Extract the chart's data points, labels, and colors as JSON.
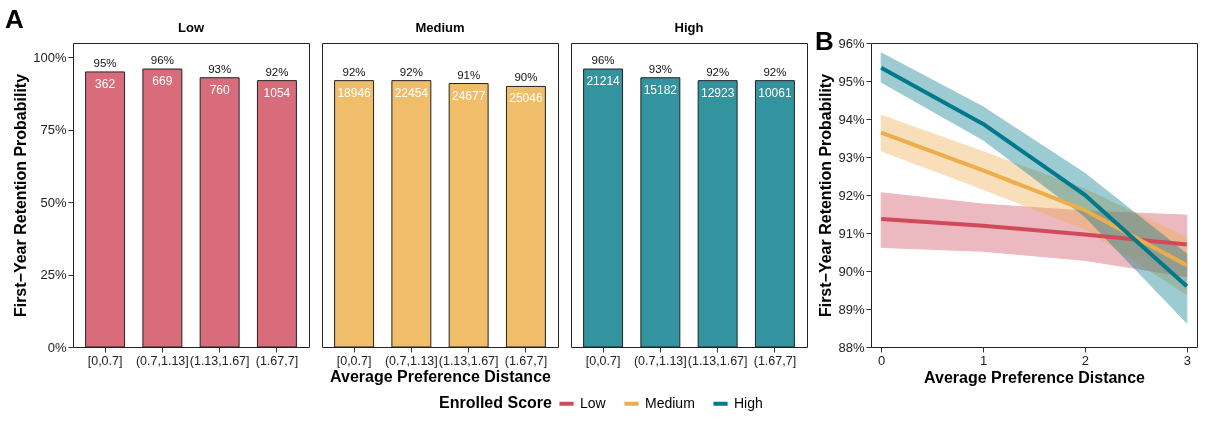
{
  "chart_data": [
    {
      "type": "bar",
      "title": "Low",
      "ylabel": "First−Year Retention Probability",
      "categories": [
        "[0,0.7]",
        "(0.7,1.13]",
        "(1.13,1.67]",
        "(1.67,7]"
      ],
      "values": [
        95,
        96,
        93,
        92
      ],
      "color": "#d96c7b",
      "value_labels": [
        "95%",
        "96%",
        "93%",
        "92%"
      ],
      "ylim": [
        0,
        105
      ],
      "yticks": [
        {
          "value": 0,
          "label": "0%"
        },
        {
          "value": 25,
          "label": "25%"
        },
        {
          "value": 50,
          "label": "50%"
        },
        {
          "value": 75,
          "label": "75%"
        },
        {
          "value": 100,
          "label": "100%"
        }
      ],
      "grid": false,
      "annotations": [
        "A",
        {
          "text": "362",
          "x": "[0,0.7]",
          "y": 95
        },
        {
          "text": "669",
          "x": "(0.7,1.13]",
          "y": 96
        },
        {
          "text": "760",
          "x": "(1.13,1.67]",
          "y": 93
        },
        {
          "text": "1054",
          "x": "(1.67,7]",
          "y": 92
        }
      ]
    },
    {
      "type": "bar",
      "title": "Medium",
      "xlabel": "Average Preference Distance",
      "categories": [
        "[0,0.7]",
        "(0.7,1.13]",
        "(1.13,1.67]",
        "(1.67,7]"
      ],
      "values": [
        92,
        92,
        91,
        90
      ],
      "color": "#f0bd6a",
      "value_labels": [
        "92%",
        "92%",
        "91%",
        "90%"
      ],
      "ylim": [
        0,
        105
      ],
      "tick_labels": "x",
      "grid": false,
      "annotations": [
        {
          "text": "18946",
          "x": "[0,0.7]",
          "y": 92
        },
        {
          "text": "22454",
          "x": "(0.7,1.13]",
          "y": 92
        },
        {
          "text": "24677",
          "x": "(1.13,1.67]",
          "y": 91
        },
        {
          "text": "25046",
          "x": "(1.67,7]",
          "y": 90
        }
      ]
    },
    {
      "type": "bar",
      "title": "High",
      "categories": [
        "[0,0.7]",
        "(0.7,1.13]",
        "(1.13,1.67]",
        "(1.67,7]"
      ],
      "values": [
        96,
        93,
        92,
        92
      ],
      "color": "#33939f",
      "value_labels": [
        "96%",
        "93%",
        "92%",
        "92%"
      ],
      "ylim": [
        0,
        105
      ],
      "tick_labels": "x",
      "grid": false,
      "annotations": [
        {
          "text": "21214",
          "x": "[0,0.7]",
          "y": 96
        },
        {
          "text": "15182",
          "x": "(0.7,1.13]",
          "y": 93
        },
        {
          "text": "12923",
          "x": "(1.13,1.67]",
          "y": 92
        },
        {
          "text": "10061",
          "x": "(1.67,7]",
          "y": 92
        }
      ]
    },
    {
      "type": "line",
      "xlabel": "Average Preference Distance",
      "ylabel": "First−Year Retention Probability",
      "legend_title": "Enrolled Score",
      "legend": "bottom",
      "marker": "none",
      "line_style": "solid",
      "grid": false,
      "annotations": [
        "B"
      ],
      "x": [
        0,
        1,
        2,
        3
      ],
      "xlim": [
        -0.1,
        3.1
      ],
      "xticks": [
        0,
        1,
        2,
        3
      ],
      "ylim": [
        88,
        96
      ],
      "yticks": [
        {
          "value": 88,
          "label": "88%"
        },
        {
          "value": 89,
          "label": "89%"
        },
        {
          "value": 90,
          "label": "90%"
        },
        {
          "value": 91,
          "label": "91%"
        },
        {
          "value": 92,
          "label": "92%"
        },
        {
          "value": 93,
          "label": "93%"
        },
        {
          "value": 94,
          "label": "94%"
        },
        {
          "value": 95,
          "label": "95%"
        },
        {
          "value": 96,
          "label": "96%"
        }
      ],
      "series": [
        {
          "name": "Low",
          "color": "#d1495b",
          "values": [
            91.37,
            91.19,
            90.96,
            90.7
          ],
          "lower": [
            90.62,
            90.52,
            90.28,
            89.85
          ],
          "upper": [
            92.06,
            91.76,
            91.58,
            91.47
          ]
        },
        {
          "name": "Medium",
          "color": "#edae49",
          "values": [
            93.64,
            92.65,
            91.6,
            90.15
          ],
          "lower": [
            93.16,
            92.15,
            91.1,
            89.38
          ],
          "upper": [
            94.1,
            93.14,
            92.16,
            90.88
          ]
        },
        {
          "name": "High",
          "color": "#00798c",
          "values": [
            95.35,
            93.87,
            92.0,
            89.6
          ],
          "lower": [
            94.97,
            93.45,
            91.43,
            88.63
          ],
          "upper": [
            95.74,
            94.32,
            92.57,
            90.45
          ]
        }
      ]
    }
  ]
}
